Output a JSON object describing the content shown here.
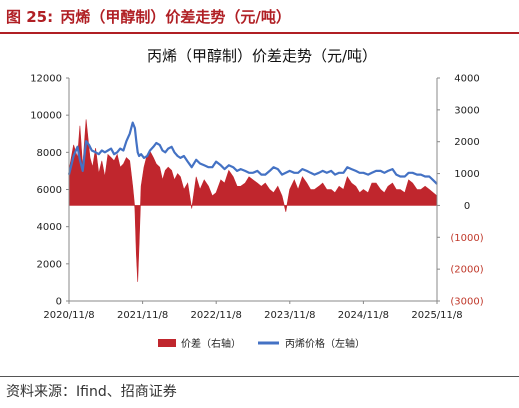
{
  "figure": {
    "label": "图 25:",
    "caption": "丙烯（甲醇制）价差走势（元/吨）"
  },
  "source": "资料来源：Ifind、招商证券",
  "chart_data": {
    "type": "line",
    "title": "丙烯（甲醇制）价差走势（元/吨）",
    "x_tick_labels": [
      "2020/11/8",
      "2021/11/8",
      "2022/11/8",
      "2023/11/8",
      "2024/11/8",
      "2025/11/8"
    ],
    "x_range": [
      "2020-11-08",
      "2025-11-08"
    ],
    "y_left": {
      "range": [
        0,
        12000
      ],
      "ticks": [
        0,
        2000,
        4000,
        6000,
        8000,
        10000,
        12000
      ],
      "tick_labels": [
        "0",
        "2000",
        "4000",
        "6000",
        "8000",
        "10000",
        "12000"
      ]
    },
    "y_right": {
      "range": [
        -3000,
        4000
      ],
      "ticks": [
        -3000,
        -2000,
        -1000,
        0,
        1000,
        2000,
        3000,
        4000
      ],
      "tick_labels": [
        "(3000)",
        "(2000)",
        "(1000)",
        "0",
        "1000",
        "2000",
        "3000",
        "4000"
      ]
    },
    "legend_position": "bottom",
    "colors": {
      "spread": "#c0262d",
      "price": "#4472c4",
      "negative_tick": "#c0392b"
    },
    "series": [
      {
        "name": "价差（右轴）",
        "type": "area",
        "axis": "right",
        "x": [
          "2020-11-08",
          "2020-12-01",
          "2020-12-20",
          "2021-01-01",
          "2021-01-15",
          "2021-02-01",
          "2021-02-20",
          "2021-03-05",
          "2021-03-20",
          "2021-04-05",
          "2021-04-20",
          "2021-05-05",
          "2021-05-20",
          "2021-06-05",
          "2021-06-20",
          "2021-07-05",
          "2021-07-20",
          "2021-08-05",
          "2021-08-20",
          "2021-09-05",
          "2021-09-20",
          "2021-10-01",
          "2021-10-08",
          "2021-10-15",
          "2021-10-22",
          "2021-11-01",
          "2021-11-15",
          "2021-12-01",
          "2021-12-15",
          "2022-01-01",
          "2022-01-15",
          "2022-02-01",
          "2022-02-15",
          "2022-03-01",
          "2022-03-15",
          "2022-04-01",
          "2022-04-15",
          "2022-05-01",
          "2022-05-15",
          "2022-06-01",
          "2022-06-20",
          "2022-07-10",
          "2022-08-01",
          "2022-08-20",
          "2022-09-10",
          "2022-10-01",
          "2022-10-20",
          "2022-11-08",
          "2022-12-01",
          "2022-12-20",
          "2023-01-10",
          "2023-02-01",
          "2023-02-20",
          "2023-03-10",
          "2023-04-01",
          "2023-04-20",
          "2023-05-10",
          "2023-06-01",
          "2023-06-20",
          "2023-07-10",
          "2023-08-01",
          "2023-08-20",
          "2023-09-10",
          "2023-10-01",
          "2023-10-20",
          "2023-11-08",
          "2023-12-01",
          "2023-12-20",
          "2024-01-10",
          "2024-02-01",
          "2024-02-20",
          "2024-03-10",
          "2024-04-01",
          "2024-04-20",
          "2024-05-10",
          "2024-06-01",
          "2024-06-20",
          "2024-07-10",
          "2024-08-01",
          "2024-08-20",
          "2024-09-10",
          "2024-10-01",
          "2024-10-20",
          "2024-11-08",
          "2024-12-01",
          "2024-12-20",
          "2025-01-10",
          "2025-02-01",
          "2025-02-20",
          "2025-03-10",
          "2025-04-01",
          "2025-04-20",
          "2025-05-10",
          "2025-06-01",
          "2025-06-20",
          "2025-07-10",
          "2025-08-01",
          "2025-08-20",
          "2025-09-10",
          "2025-10-01",
          "2025-10-20",
          "2025-11-08"
        ],
        "values": [
          1100,
          1900,
          1500,
          2500,
          1200,
          2700,
          1500,
          1200,
          1800,
          1000,
          1400,
          900,
          1600,
          1500,
          1400,
          1600,
          1200,
          1300,
          1500,
          1400,
          600,
          -100,
          -1500,
          -2400,
          -1200,
          600,
          1200,
          1600,
          1700,
          1500,
          1300,
          1200,
          800,
          1100,
          1200,
          1100,
          800,
          1000,
          900,
          500,
          700,
          -100,
          900,
          500,
          800,
          600,
          300,
          400,
          800,
          700,
          1100,
          900,
          600,
          600,
          700,
          900,
          800,
          700,
          600,
          700,
          500,
          400,
          600,
          300,
          -200,
          500,
          800,
          500,
          900,
          700,
          500,
          500,
          600,
          700,
          500,
          500,
          400,
          600,
          500,
          900,
          700,
          600,
          400,
          500,
          400,
          700,
          700,
          500,
          400,
          600,
          700,
          500,
          500,
          400,
          800,
          700,
          500,
          500,
          600,
          500,
          400,
          300
        ]
      },
      {
        "name": "丙烯价格（左轴）",
        "type": "line",
        "axis": "left",
        "x": [
          "2020-11-08",
          "2020-12-01",
          "2020-12-20",
          "2021-01-01",
          "2021-01-15",
          "2021-02-01",
          "2021-02-15",
          "2021-03-01",
          "2021-03-20",
          "2021-04-05",
          "2021-04-20",
          "2021-05-05",
          "2021-05-20",
          "2021-06-05",
          "2021-06-20",
          "2021-07-05",
          "2021-07-20",
          "2021-08-05",
          "2021-08-20",
          "2021-09-05",
          "2021-09-20",
          "2021-10-01",
          "2021-10-08",
          "2021-10-15",
          "2021-10-22",
          "2021-11-01",
          "2021-11-15",
          "2021-12-01",
          "2021-12-15",
          "2022-01-01",
          "2022-01-15",
          "2022-02-01",
          "2022-02-15",
          "2022-03-01",
          "2022-03-15",
          "2022-04-01",
          "2022-04-15",
          "2022-05-01",
          "2022-05-15",
          "2022-06-01",
          "2022-06-20",
          "2022-07-10",
          "2022-08-01",
          "2022-08-20",
          "2022-09-10",
          "2022-10-01",
          "2022-10-20",
          "2022-11-08",
          "2022-12-01",
          "2022-12-20",
          "2023-01-10",
          "2023-02-01",
          "2023-02-20",
          "2023-03-10",
          "2023-04-01",
          "2023-04-20",
          "2023-05-10",
          "2023-06-01",
          "2023-06-20",
          "2023-07-10",
          "2023-08-01",
          "2023-08-20",
          "2023-09-10",
          "2023-10-01",
          "2023-10-20",
          "2023-11-08",
          "2023-12-01",
          "2023-12-20",
          "2024-01-10",
          "2024-02-01",
          "2024-02-20",
          "2024-03-10",
          "2024-04-01",
          "2024-04-20",
          "2024-05-10",
          "2024-06-01",
          "2024-06-20",
          "2024-07-10",
          "2024-08-01",
          "2024-08-20",
          "2024-09-10",
          "2024-10-01",
          "2024-10-20",
          "2024-11-08",
          "2024-12-01",
          "2024-12-20",
          "2025-01-10",
          "2025-02-01",
          "2025-02-20",
          "2025-03-10",
          "2025-04-01",
          "2025-04-20",
          "2025-05-10",
          "2025-06-01",
          "2025-06-20",
          "2025-07-10",
          "2025-08-01",
          "2025-08-20",
          "2025-09-10",
          "2025-10-01",
          "2025-10-20",
          "2025-11-08"
        ],
        "values": [
          6800,
          7800,
          8300,
          7600,
          7000,
          8600,
          8400,
          8100,
          8000,
          7900,
          8100,
          8000,
          8100,
          8200,
          7900,
          8000,
          8200,
          8100,
          8600,
          9000,
          9600,
          9300,
          8600,
          8000,
          7800,
          7900,
          7700,
          7800,
          8100,
          8300,
          8500,
          8400,
          8100,
          8000,
          8200,
          8300,
          8000,
          7800,
          7700,
          7800,
          7500,
          7200,
          7600,
          7400,
          7300,
          7200,
          7200,
          7500,
          7300,
          7100,
          7300,
          7200,
          7000,
          7100,
          7000,
          6900,
          6900,
          7000,
          6800,
          6800,
          7000,
          7200,
          7100,
          6800,
          6900,
          7000,
          6900,
          6900,
          7100,
          7000,
          6900,
          6800,
          6900,
          7000,
          6900,
          7000,
          6800,
          6900,
          6900,
          7200,
          7100,
          7000,
          6900,
          6900,
          6800,
          6900,
          7000,
          7000,
          6900,
          7000,
          7100,
          6800,
          6700,
          6700,
          6900,
          6900,
          6800,
          6800,
          6700,
          6700,
          6500,
          6300
        ]
      }
    ]
  }
}
